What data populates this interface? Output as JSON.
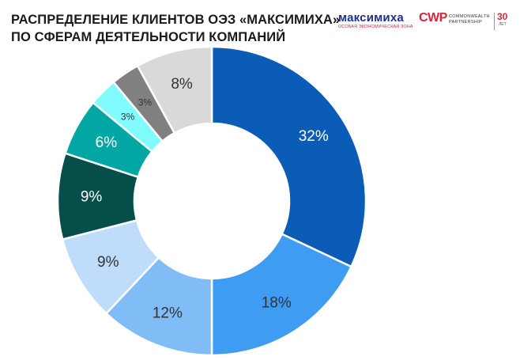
{
  "header": {
    "title_line1": "РАСПРЕДЕЛЕНИЕ КЛИЕНТОВ ОЭЗ «МАКСИМИХА»",
    "title_line2": "ПО СФЕРАМ ДЕЯТЕЛЬНОСТИ КОМПАНИЙ"
  },
  "logos": {
    "maksimikha_name": "максимиха",
    "maksimikha_sub": "ОСОБАЯ ЭКОНОМИЧЕСКАЯ ЗОНА",
    "cwp_mark": "CWP",
    "cwp_line1": "COMMONWEALTH",
    "cwp_line2": "PARTNERSHIP",
    "cwp_years": "30",
    "cwp_years_unit": "ЛЕТ"
  },
  "chart_data": {
    "type": "pie",
    "donut": true,
    "start": "12 o'clock",
    "direction": "clockwise",
    "values": [
      32,
      18,
      12,
      9,
      9,
      6,
      3,
      3,
      8
    ],
    "labels": [
      "32%",
      "18%",
      "12%",
      "9%",
      "9%",
      "6%",
      "3%",
      "3%",
      "8%"
    ],
    "colors": [
      "#0a5cb6",
      "#3e9cf3",
      "#80bdf7",
      "#bfdcfb",
      "#064e49",
      "#02a7a3",
      "#80fcff",
      "#808080",
      "#d9d9d9"
    ],
    "label_colors": [
      "#ffffff",
      "#333333",
      "#333333",
      "#333333",
      "#ffffff",
      "#ffffff",
      "#333333",
      "#333333",
      "#333333"
    ],
    "legend": "none"
  }
}
